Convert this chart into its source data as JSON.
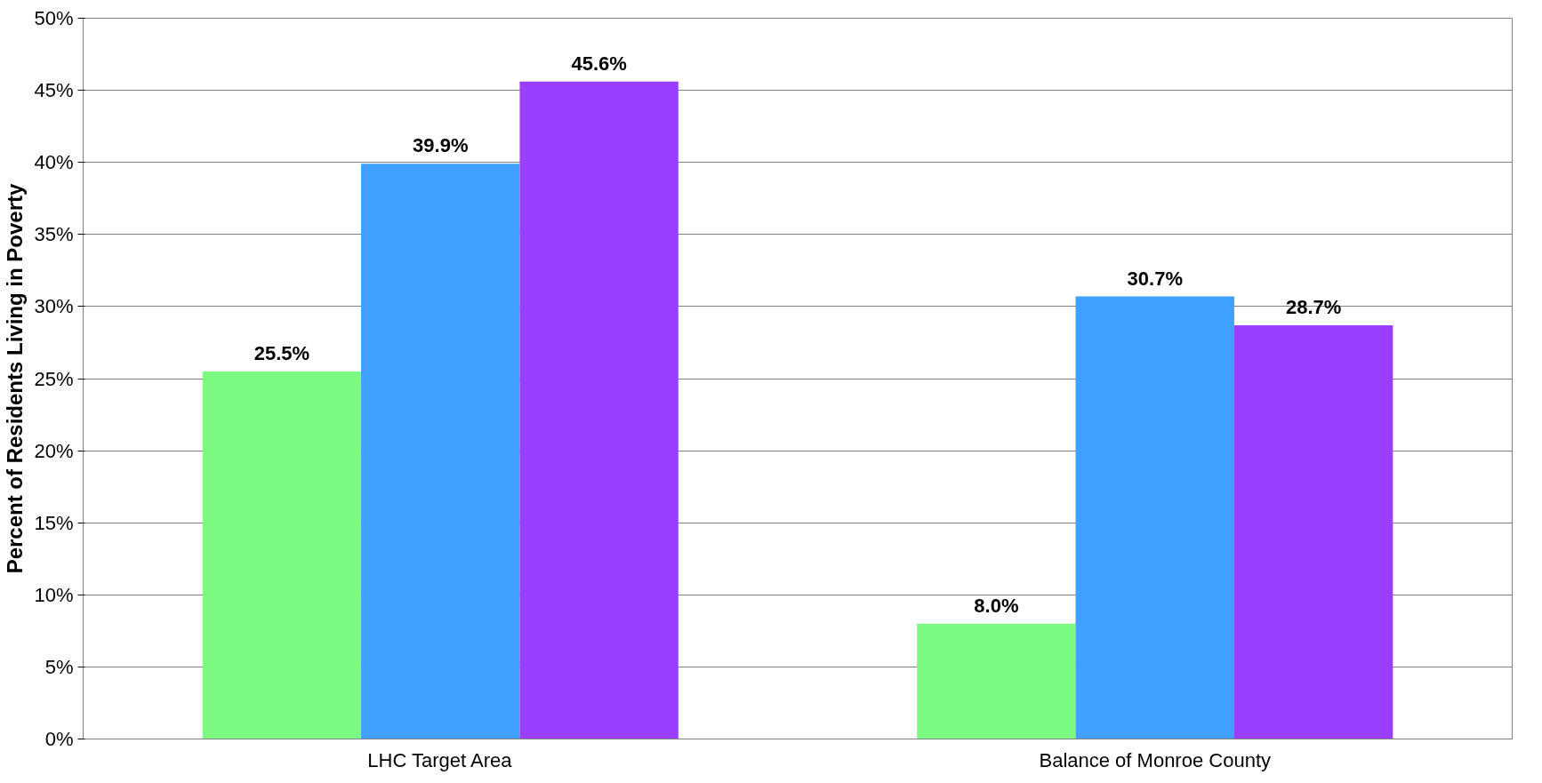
{
  "chart_data": {
    "type": "bar",
    "ylabel": "Percent of Residents Living in Poverty",
    "categories": [
      "LHC Target Area",
      "Balance of Monroe County"
    ],
    "series": [
      {
        "color": "#7cfa82",
        "values": [
          25.5,
          8.0
        ],
        "value_labels": [
          "25.5%",
          "8.0%"
        ]
      },
      {
        "color": "#3fa0ff",
        "values": [
          39.9,
          30.7
        ],
        "value_labels": [
          "39.9%",
          "30.7%"
        ]
      },
      {
        "color": "#9b3fff",
        "values": [
          45.6,
          28.7
        ],
        "value_labels": [
          "45.6%",
          "28.7%"
        ]
      }
    ],
    "ylim": [
      0,
      50
    ],
    "yticks": [
      {
        "value": 0,
        "label": "0%"
      },
      {
        "value": 5,
        "label": "5%"
      },
      {
        "value": 10,
        "label": "10%"
      },
      {
        "value": 15,
        "label": "15%"
      },
      {
        "value": 20,
        "label": "20%"
      },
      {
        "value": 25,
        "label": "25%"
      },
      {
        "value": 30,
        "label": "30%"
      },
      {
        "value": 35,
        "label": "35%"
      },
      {
        "value": 40,
        "label": "40%"
      },
      {
        "value": 45,
        "label": "45%"
      },
      {
        "value": 50,
        "label": "50%"
      }
    ],
    "grid": "y"
  }
}
